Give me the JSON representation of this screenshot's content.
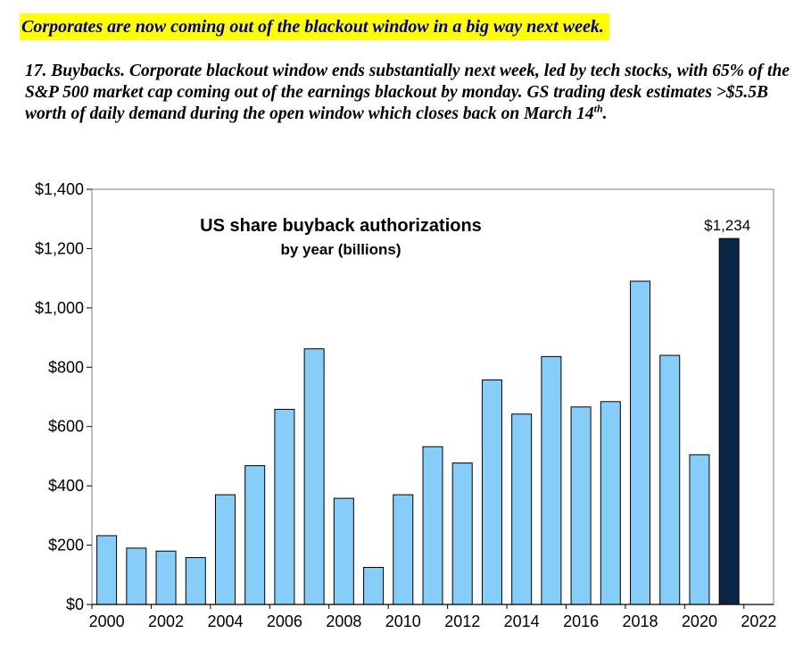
{
  "headline": "Corporates are now coming out of the blackout window in a big way next week.",
  "paragraph": {
    "text": "17. Buybacks. Corporate blackout window ends substantially next week, led by tech stocks, with 65% of the S&P 500 market cap coming out of the earnings blackout by monday. GS trading desk estimates >$5.5B worth of daily demand during the open window which closes back on March 14",
    "sup": "th",
    "tail": "."
  },
  "colors": {
    "headline_bg": "#ffff00",
    "headline_text": "#00009c",
    "bar": "#87cdfa",
    "highlight_bar": "#0b2548"
  },
  "chart_data": {
    "type": "bar",
    "title": "US share buyback authorizations",
    "subtitle": "by year (billions)",
    "categories": [
      "2000",
      "2001",
      "2002",
      "2003",
      "2004",
      "2005",
      "2006",
      "2007",
      "2008",
      "2009",
      "2010",
      "2011",
      "2012",
      "2013",
      "2014",
      "2015",
      "2016",
      "2017",
      "2018",
      "2019",
      "2020",
      "2021"
    ],
    "values": [
      232,
      190,
      180,
      158,
      370,
      468,
      658,
      862,
      358,
      125,
      370,
      532,
      477,
      757,
      642,
      836,
      666,
      684,
      1090,
      840,
      505,
      1234
    ],
    "highlight_index": 21,
    "data_labels": [
      {
        "index": 21,
        "text": "$1,234"
      }
    ],
    "x_ticks": [
      "2000",
      "2002",
      "2004",
      "2006",
      "2008",
      "2010",
      "2012",
      "2014",
      "2016",
      "2018",
      "2020",
      "2022"
    ],
    "y_ticks": [
      "$0",
      "$200",
      "$400",
      "$600",
      "$800",
      "$1,000",
      "$1,200",
      "$1,400"
    ],
    "ylim": [
      0,
      1400
    ],
    "xlabel": "",
    "ylabel": "",
    "grid": false,
    "legend": "none"
  }
}
